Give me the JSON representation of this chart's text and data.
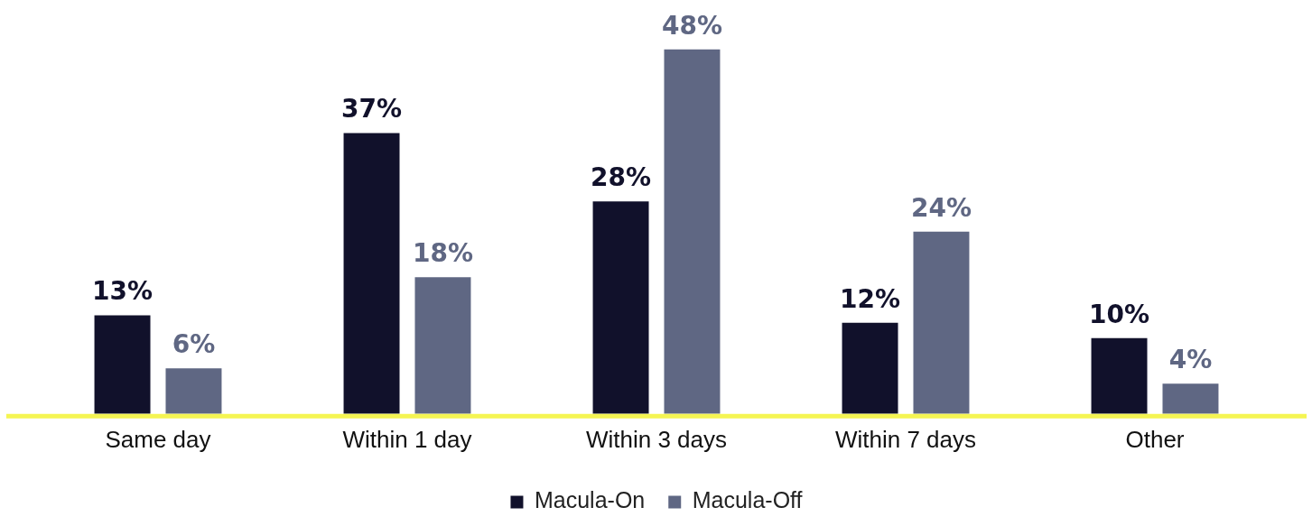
{
  "chart_data": {
    "type": "bar",
    "categories": [
      "Same day",
      "Within 1 day",
      "Within 3 days",
      "Within 7 days",
      "Other"
    ],
    "series": [
      {
        "name": "Macula-On",
        "color": "#11112b",
        "values": [
          13,
          37,
          28,
          12,
          10
        ],
        "value_labels": [
          "13%",
          "37%",
          "28%",
          "12%",
          "10%"
        ]
      },
      {
        "name": "Macula-Off",
        "color": "#5f6783",
        "values": [
          6,
          18,
          48,
          24,
          4
        ],
        "value_labels": [
          "6%",
          "18%",
          "48%",
          "24%",
          "4%"
        ]
      }
    ],
    "legend": "bottom",
    "grid": false
  }
}
